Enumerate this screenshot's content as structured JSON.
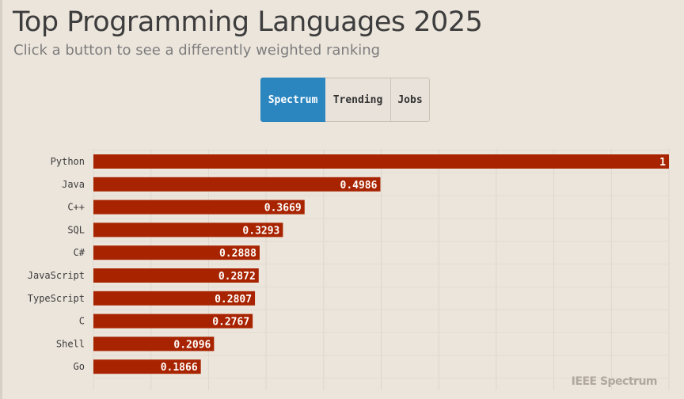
{
  "header": {
    "title": "Top Programming Languages 2025",
    "subtitle": "Click a button to see a differently weighted ranking"
  },
  "buttons": [
    {
      "label": "Spectrum",
      "active": true
    },
    {
      "label": "Trending",
      "active": false
    },
    {
      "label": "Jobs",
      "active": false
    }
  ],
  "brand": "IEEE Spectrum",
  "chart_data": {
    "type": "bar",
    "orientation": "horizontal",
    "categories": [
      "Python",
      "Java",
      "C++",
      "SQL",
      "C#",
      "JavaScript",
      "TypeScript",
      "C",
      "Shell",
      "Go"
    ],
    "values": [
      1,
      0.4986,
      0.3669,
      0.3293,
      0.2888,
      0.2872,
      0.2807,
      0.2767,
      0.2096,
      0.1866
    ],
    "xlim": [
      0,
      1
    ],
    "grid": true,
    "bar_color": "#a82400",
    "label_color": "#ffffff"
  }
}
